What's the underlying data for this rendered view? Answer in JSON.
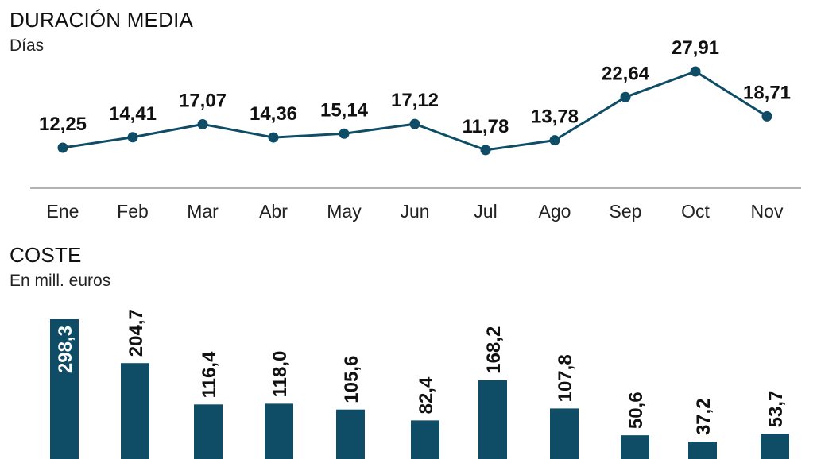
{
  "chart_data": [
    {
      "type": "line",
      "title": "DURACIÓN MEDIA",
      "subtitle": "Días",
      "categories": [
        "Ene",
        "Feb",
        "Mar",
        "Abr",
        "May",
        "Jun",
        "Jul",
        "Ago",
        "Sep",
        "Oct",
        "Nov"
      ],
      "values": [
        12.25,
        14.41,
        17.07,
        14.36,
        15.14,
        17.12,
        11.78,
        13.78,
        22.64,
        27.91,
        18.71
      ],
      "labels": [
        "12,25",
        "14,41",
        "17,07",
        "14,36",
        "15,14",
        "17,12",
        "11,78",
        "13,78",
        "22,64",
        "27,91",
        "18,71"
      ],
      "color": "#0f4c66"
    },
    {
      "type": "bar",
      "title": "COSTE",
      "subtitle": "En mill. euros",
      "categories": [
        "Ene",
        "Feb",
        "Mar",
        "Abr",
        "May",
        "Jun",
        "Jul",
        "Ago",
        "Sep",
        "Oct",
        "Nov"
      ],
      "values": [
        298.3,
        204.7,
        116.4,
        118.0,
        105.6,
        82.4,
        168.2,
        107.8,
        50.6,
        37.2,
        53.7
      ],
      "labels": [
        "298,3",
        "204,7",
        "116,4",
        "118,0",
        "105,6",
        "82,4",
        "168,2",
        "107,8",
        "50,6",
        "37,2",
        "53,7"
      ],
      "color": "#0f4c66"
    }
  ]
}
